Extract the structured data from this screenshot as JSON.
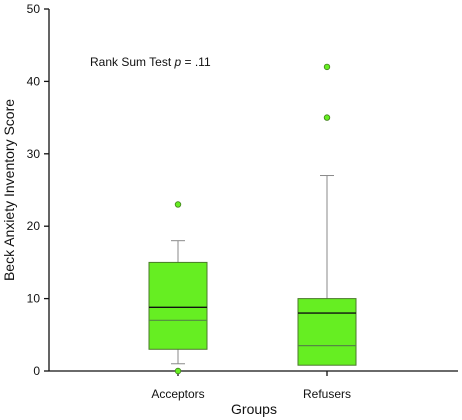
{
  "chart_data": {
    "type": "box",
    "title": "",
    "xlabel": "Groups",
    "ylabel": "Beck Anxiety Inventory Score",
    "ylim": [
      0,
      50
    ],
    "yticks": [
      0,
      10,
      20,
      30,
      40,
      50
    ],
    "grid": false,
    "annotation": {
      "prefix": "Rank Sum Test ",
      "italic": "p",
      "suffix": " = .11"
    },
    "categories": [
      "Acceptors",
      "Refusers"
    ],
    "boxes": [
      {
        "name": "Acceptors",
        "whisker_low": 1,
        "q1": 3,
        "median": 7,
        "mean": 8.8,
        "q3": 15,
        "whisker_high": 18,
        "outliers": [
          23,
          0
        ]
      },
      {
        "name": "Refusers",
        "whisker_low": 0.8,
        "q1": 0.8,
        "median": 3.5,
        "mean": 8,
        "q3": 10,
        "whisker_high": 27,
        "outliers": [
          35,
          42
        ]
      }
    ],
    "colors": {
      "box_fill": "#66ee22",
      "box_stroke": "#4a7a2a",
      "median_line": "#558844",
      "mean_line": "#111111",
      "whisker": "#8a8a8a",
      "outlier_fill": "#66ee22",
      "outlier_stroke": "#3f7f1a",
      "axis": "#111111"
    }
  }
}
